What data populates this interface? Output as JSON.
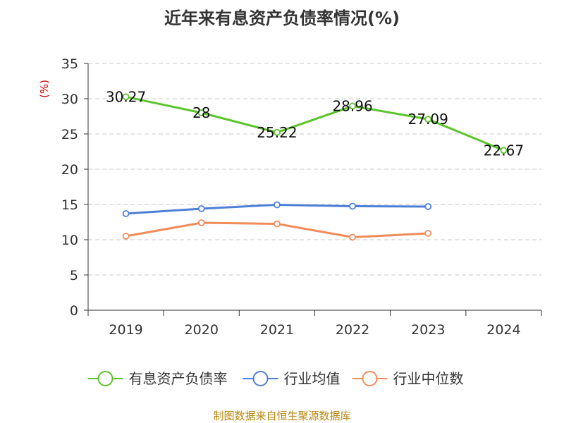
{
  "chart_data": {
    "type": "line",
    "title": "近年来有息资产负债率情况(%)",
    "ylabel": "(%)",
    "xlabel": "",
    "categories": [
      "2019",
      "2020",
      "2021",
      "2022",
      "2023",
      "2024"
    ],
    "ylim": [
      0,
      35
    ],
    "yticks": [
      0,
      5,
      10,
      15,
      20,
      25,
      30,
      35
    ],
    "grid": true,
    "legend_position": "bottom",
    "series": [
      {
        "name": "有息资产负债率",
        "color": "#5cc42b",
        "values": [
          30.27,
          28,
          25.22,
          28.96,
          27.09,
          22.67
        ],
        "labels": [
          "30.27",
          "28",
          "25.22",
          "28.96",
          "27.09",
          "22.67"
        ]
      },
      {
        "name": "行业均值",
        "color": "#4e7fd6",
        "values": [
          13.7,
          14.4,
          14.95,
          14.75,
          14.7,
          null
        ]
      },
      {
        "name": "行业中位数",
        "color": "#f08c5a",
        "values": [
          10.5,
          12.4,
          12.25,
          10.35,
          10.9,
          null
        ]
      }
    ],
    "unit_color": "#cc0000"
  },
  "source": "制图数据来自恒生聚源数据库"
}
